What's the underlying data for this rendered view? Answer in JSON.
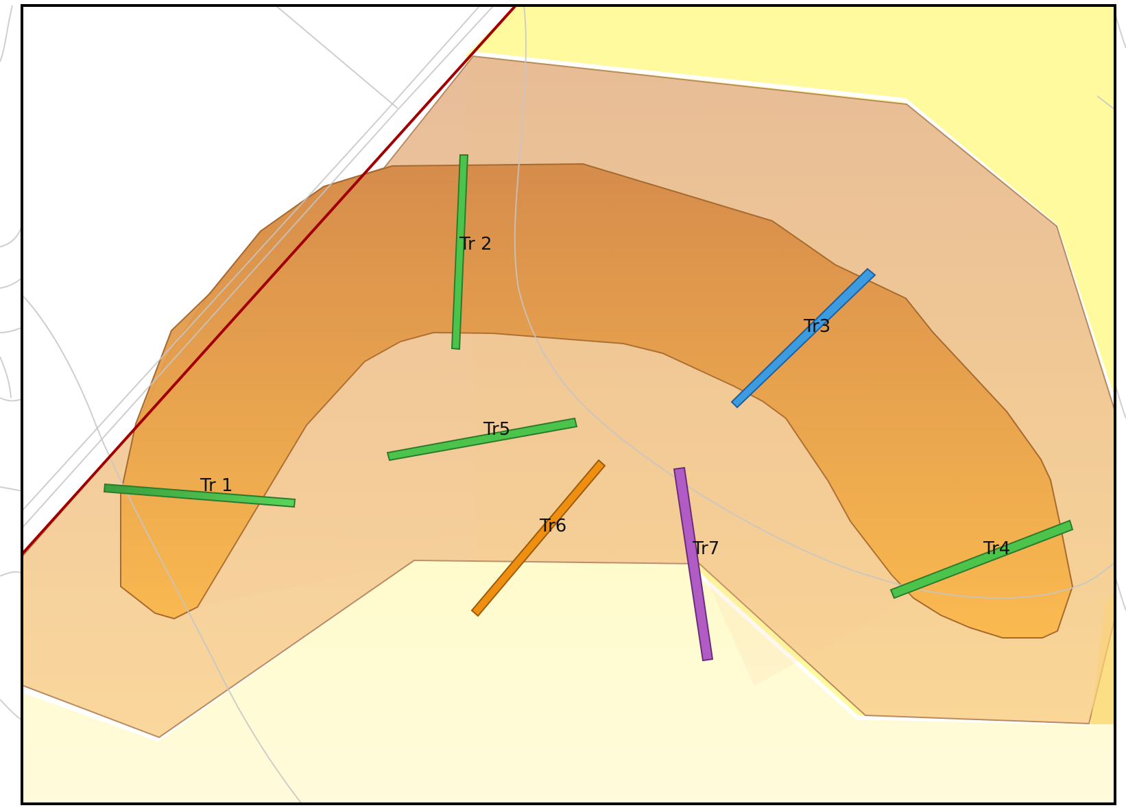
{
  "map": {
    "colors": {
      "frame": "#000000",
      "boundary_line": "#a00000",
      "background_line": "#c8c8c8",
      "yellow_zone": "#fff9a0",
      "pale_zone": "#fffbd0",
      "outer_buffer": "#e6b88f",
      "inner_arc_top": "#d58a45",
      "inner_arc_bottom": "#f9b84b"
    }
  },
  "trenches": [
    {
      "id": "tr1",
      "label": "Tr 1",
      "color": "#47b347",
      "icon": "trench-bar"
    },
    {
      "id": "tr2",
      "label": "Tr 2",
      "color": "#47b347",
      "icon": "trench-bar"
    },
    {
      "id": "tr3",
      "label": "Tr3",
      "color": "#3d9be0",
      "icon": "trench-bar"
    },
    {
      "id": "tr4",
      "label": "Tr4",
      "color": "#47b347",
      "icon": "trench-bar"
    },
    {
      "id": "tr5",
      "label": "Tr5",
      "color": "#47b347",
      "icon": "trench-bar"
    },
    {
      "id": "tr6",
      "label": "Tr6",
      "color": "#e8860f",
      "icon": "trench-bar"
    },
    {
      "id": "tr7",
      "label": "Tr7",
      "color": "#b05cc4",
      "icon": "trench-bar"
    }
  ]
}
